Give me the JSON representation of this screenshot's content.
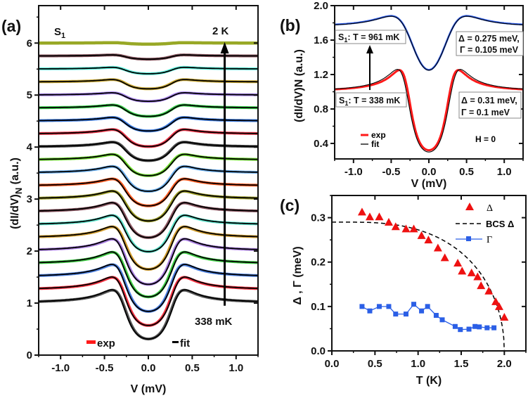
{
  "colors": {
    "exp_red": "#ff1a1a",
    "fit_black": "#000000",
    "blue": "#2f5de8",
    "gamma_blue": "#2b5fe6",
    "delta_red": "#ee1111"
  },
  "chart_data": [
    {
      "panel_label": "(a)",
      "type": "line",
      "xlabel": "V (mV)",
      "ylabel": {
        "main": "(dI/dV)",
        "sub": "N",
        "unit": " (a.u.)"
      },
      "xlim": [
        -1.25,
        1.25
      ],
      "ylim": [
        0,
        6.72
      ],
      "x_ticks": [
        {
          "v": -1.0,
          "label": "-1.0"
        },
        {
          "v": -0.5,
          "label": "-0.5"
        },
        {
          "v": 0.0,
          "label": "0.0"
        },
        {
          "v": 0.5,
          "label": "0.5"
        },
        {
          "v": 1.0,
          "label": "1.0"
        }
      ],
      "y_ticks": [
        {
          "v": 0,
          "label": "0"
        },
        {
          "v": 1,
          "label": "1"
        },
        {
          "v": 2,
          "label": "2"
        },
        {
          "v": 3,
          "label": "3"
        },
        {
          "v": 4,
          "label": "4"
        },
        {
          "v": 5,
          "label": "5"
        },
        {
          "v": 6,
          "label": "6"
        }
      ],
      "sample": {
        "main": "S",
        "sub": "1"
      },
      "arrow_top_label": "2 K",
      "arrow_bottom_label": "338 mK",
      "arrow_V": 0.87,
      "legend": [
        {
          "label": "exp",
          "color": "#ff1a1a"
        },
        {
          "label": "fit",
          "color": "#000000"
        }
      ],
      "series": [
        {
          "offset": 1.0,
          "min_value": 0.31,
          "color": "#555555",
          "has_fit": true
        },
        {
          "offset": 1.25,
          "min_value": 0.57,
          "color": "#f2303f",
          "has_fit": true
        },
        {
          "offset": 1.5,
          "min_value": 0.84,
          "color": "#4a7fe0",
          "has_fit": true
        },
        {
          "offset": 1.75,
          "min_value": 1.12,
          "color": "#3fcf45",
          "has_fit": true
        },
        {
          "offset": 2.0,
          "min_value": 1.36,
          "color": "#a97ee0",
          "has_fit": true
        },
        {
          "offset": 2.25,
          "min_value": 1.65,
          "color": "#cf9a2a",
          "has_fit": true
        },
        {
          "offset": 2.5,
          "min_value": 1.99,
          "color": "#5ee3cc",
          "has_fit": true
        },
        {
          "offset": 2.75,
          "min_value": 2.26,
          "color": "#8a5560",
          "has_fit": true
        },
        {
          "offset": 3.0,
          "min_value": 2.58,
          "color": "#9a9a22",
          "has_fit": true
        },
        {
          "offset": 3.25,
          "min_value": 2.87,
          "color": "#ff5a1f",
          "has_fit": true
        },
        {
          "offset": 3.5,
          "min_value": 3.15,
          "color": "#6aaeee",
          "has_fit": true
        },
        {
          "offset": 3.75,
          "min_value": 3.45,
          "color": "#6ad82a",
          "has_fit": true
        },
        {
          "offset": 4.0,
          "min_value": 3.74,
          "color": "#4a4a4a",
          "has_fit": true
        },
        {
          "offset": 4.25,
          "min_value": 4.01,
          "color": "#ee3347",
          "has_fit": true
        },
        {
          "offset": 4.5,
          "min_value": 4.31,
          "color": "#3a7ae0",
          "has_fit": true
        },
        {
          "offset": 4.75,
          "min_value": 4.59,
          "color": "#36cf48",
          "has_fit": true
        },
        {
          "offset": 5.0,
          "min_value": 4.88,
          "color": "#ab88ee",
          "has_fit": true
        },
        {
          "offset": 5.25,
          "min_value": 5.12,
          "color": "#ccaa33",
          "has_fit": true
        },
        {
          "offset": 5.5,
          "min_value": 5.41,
          "color": "#5ff0dd",
          "has_fit": true
        },
        {
          "offset": 5.75,
          "min_value": 5.69,
          "color": "#84505a",
          "has_fit": true
        },
        {
          "offset": 6.0,
          "min_value": 5.98,
          "color": "#98a826",
          "has_fit": false
        }
      ]
    },
    {
      "panel_label": "(b)",
      "type": "line",
      "xlabel": "V (mV)",
      "ylabel": {
        "main": "(dI/dV)N (a.u.)"
      },
      "xlim": [
        -1.25,
        1.25
      ],
      "ylim": [
        0.22,
        2.0
      ],
      "x_ticks": [
        {
          "v": -1.0,
          "label": "-1.0"
        },
        {
          "v": -0.5,
          "label": "-0.5"
        },
        {
          "v": 0.0,
          "label": "0.0"
        },
        {
          "v": 0.5,
          "label": "0.5"
        },
        {
          "v": 1.0,
          "label": "1.0"
        }
      ],
      "y_ticks": [
        {
          "v": 0.4,
          "label": "0.4"
        },
        {
          "v": 0.8,
          "label": "0.8"
        },
        {
          "v": 1.2,
          "label": "1.2"
        },
        {
          "v": 1.6,
          "label": "1.6"
        },
        {
          "v": 2.0,
          "label": "2.0"
        }
      ],
      "series": [
        {
          "name": "S1: T = 961 mK",
          "baseline": 1.75,
          "min_value": 1.25,
          "color": "#2f5de8",
          "delta_meV": 0.275,
          "gamma_meV": 0.105
        },
        {
          "name": "S1: T = 338 mK",
          "baseline": 1.0,
          "min_value": 0.3,
          "color": "#ff1a1a",
          "delta_meV": 0.31,
          "gamma_meV": 0.1
        }
      ],
      "box_961": {
        "s": "S",
        "sub": "1",
        "rest": ": T = 961 mK"
      },
      "box_338": {
        "s": "S",
        "sub": "1",
        "rest": ": T = 338 mK"
      },
      "params_961": {
        "line1": "Δ = 0.275 meV,",
        "line2": "Γ = 0.105 meV"
      },
      "params_338": {
        "line1": "Δ = 0.31 meV,",
        "line2": "Γ = 0.1 meV"
      },
      "legend": [
        {
          "label": "exp",
          "color": "#ff1a1a"
        },
        {
          "label": "fit",
          "color": "#000000"
        }
      ],
      "field_label": "H = 0"
    },
    {
      "panel_label": "(c)",
      "type": "scatter",
      "xlabel": "T (K)",
      "ylabel": {
        "main": "Δ , Γ (meV)"
      },
      "xlim": [
        0,
        2.25
      ],
      "ylim": [
        0,
        0.35
      ],
      "x_ticks": [
        {
          "v": 0.0,
          "label": "0.0"
        },
        {
          "v": 0.5,
          "label": "0.5"
        },
        {
          "v": 1.0,
          "label": "1.0"
        },
        {
          "v": 1.5,
          "label": "1.5"
        },
        {
          "v": 2.0,
          "label": "2.0"
        }
      ],
      "y_ticks": [
        {
          "v": 0.0,
          "label": "0.0"
        },
        {
          "v": 0.1,
          "label": "0.1"
        },
        {
          "v": 0.2,
          "label": "0.2"
        },
        {
          "v": 0.3,
          "label": "0.3"
        }
      ],
      "legend": [
        {
          "label": "Δ",
          "color": "#ee1111"
        },
        {
          "label": "BCS Δ",
          "color": "#000000"
        },
        {
          "label": "Γ",
          "color": "#2b5fe6"
        }
      ],
      "bcs": {
        "delta0": 0.29,
        "Tc": 2.0
      },
      "delta": {
        "T": [
          0.35,
          0.44,
          0.55,
          0.66,
          0.74,
          0.86,
          0.95,
          1.04,
          1.12,
          1.23,
          1.31,
          1.46,
          1.51,
          1.62,
          1.69,
          1.73,
          1.82,
          1.9,
          1.94,
          2.0
        ],
        "values": [
          0.313,
          0.302,
          0.302,
          0.29,
          0.28,
          0.275,
          0.275,
          0.26,
          0.25,
          0.232,
          0.21,
          0.198,
          0.18,
          0.176,
          0.167,
          0.147,
          0.135,
          0.111,
          0.1,
          0.076
        ]
      },
      "gamma": {
        "T": [
          0.35,
          0.44,
          0.55,
          0.66,
          0.74,
          0.86,
          0.95,
          1.04,
          1.11,
          1.21,
          1.28,
          1.43,
          1.49,
          1.59,
          1.66,
          1.71,
          1.8,
          1.88
        ],
        "values": [
          0.1,
          0.09,
          0.1,
          0.1,
          0.083,
          0.083,
          0.105,
          0.09,
          0.1,
          0.08,
          0.07,
          0.055,
          0.048,
          0.049,
          0.055,
          0.054,
          0.052,
          0.052
        ]
      }
    }
  ]
}
